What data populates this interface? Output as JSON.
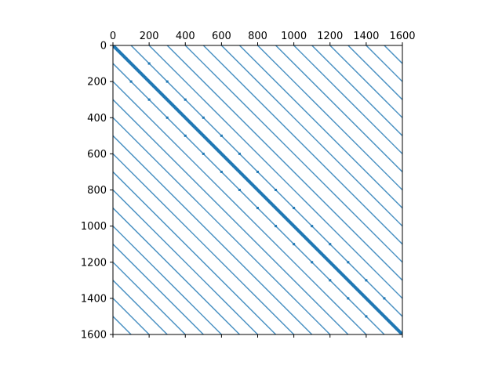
{
  "chart_data": {
    "type": "scatter",
    "title": "",
    "xlabel": "",
    "ylabel": "",
    "xlim": [
      0,
      1600
    ],
    "ylim": [
      1600,
      0
    ],
    "x_ticks": [
      0,
      200,
      400,
      600,
      800,
      1000,
      1200,
      1400,
      1600
    ],
    "y_ticks": [
      0,
      200,
      400,
      600,
      800,
      1000,
      1200,
      1400,
      1600
    ],
    "x_tick_labels": [
      "0",
      "200",
      "400",
      "600",
      "800",
      "1000",
      "1200",
      "1400",
      "1600"
    ],
    "y_tick_labels": [
      "0",
      "200",
      "400",
      "600",
      "800",
      "1000",
      "1200",
      "1400",
      "1600"
    ],
    "x_axis_position": "top",
    "grid": false,
    "legend": "none",
    "color": "#1f77b4",
    "diagonal_offsets": [
      -1500,
      -1400,
      -1300,
      -1200,
      -1100,
      -1000,
      -900,
      -800,
      -700,
      -600,
      -500,
      -400,
      -300,
      -200,
      -100,
      0,
      100,
      200,
      300,
      400,
      500,
      600,
      700,
      800,
      900,
      1000,
      1100,
      1200,
      1300,
      1400,
      1500
    ],
    "main_diagonal": {
      "offset": 0,
      "band_halfwidth": 6
    },
    "scattered_points": [
      [
        100,
        200
      ],
      [
        200,
        100
      ],
      [
        300,
        200
      ],
      [
        200,
        300
      ],
      [
        400,
        300
      ],
      [
        300,
        400
      ],
      [
        500,
        400
      ],
      [
        400,
        500
      ],
      [
        600,
        500
      ],
      [
        500,
        600
      ],
      [
        700,
        600
      ],
      [
        600,
        700
      ],
      [
        800,
        700
      ],
      [
        700,
        800
      ],
      [
        900,
        800
      ],
      [
        800,
        900
      ],
      [
        1000,
        900
      ],
      [
        900,
        1000
      ],
      [
        1100,
        1000
      ],
      [
        1000,
        1100
      ],
      [
        1200,
        1100
      ],
      [
        1100,
        1200
      ],
      [
        1300,
        1200
      ],
      [
        1200,
        1300
      ],
      [
        1400,
        1300
      ],
      [
        1300,
        1400
      ],
      [
        1500,
        1400
      ],
      [
        1400,
        1500
      ]
    ]
  }
}
